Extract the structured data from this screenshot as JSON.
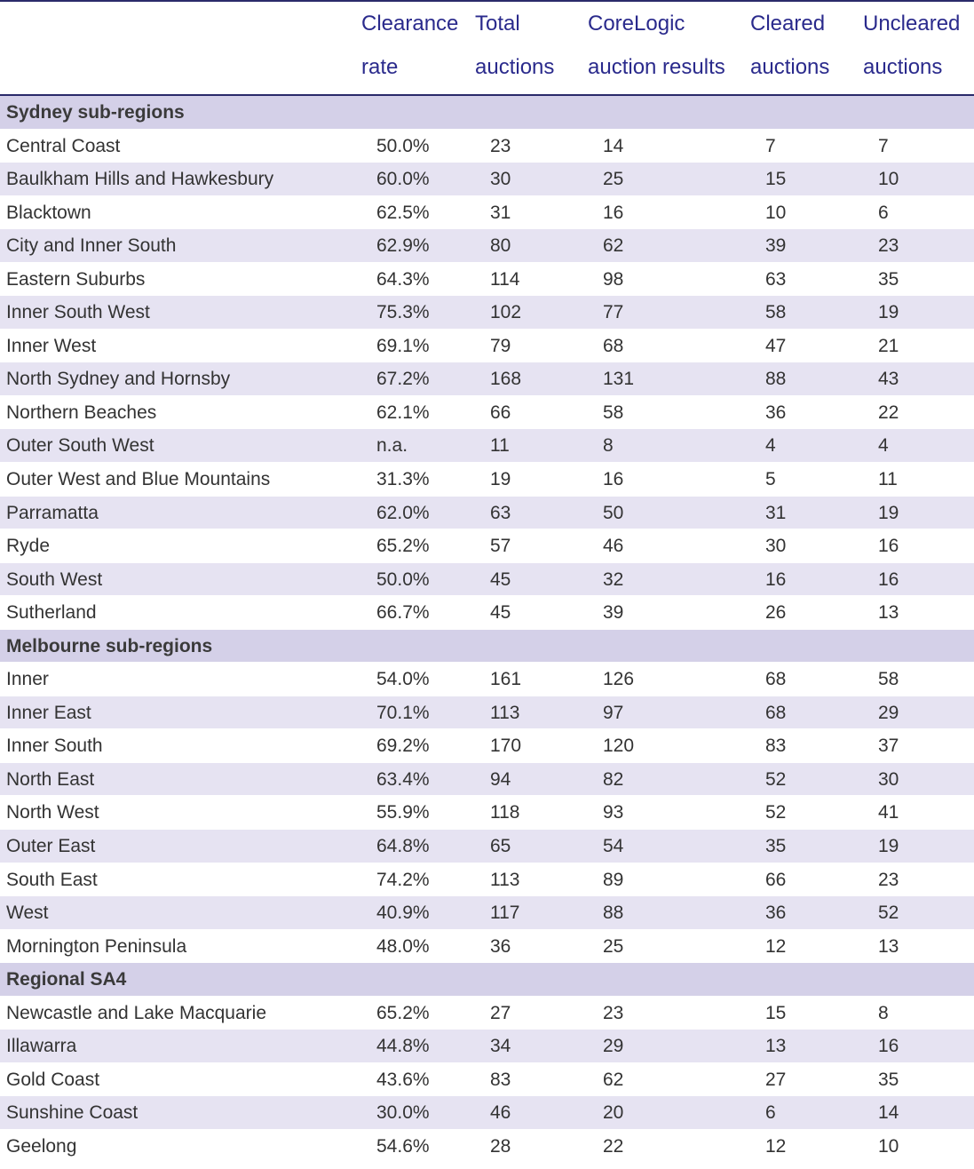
{
  "headers": [
    {
      "line1": "Clearance",
      "line2": "rate"
    },
    {
      "line1": "Total",
      "line2": "auctions"
    },
    {
      "line1": "CoreLogic",
      "line2": "auction results"
    },
    {
      "line1": "Cleared",
      "line2": "auctions"
    },
    {
      "line1": "Uncleared",
      "line2": "auctions"
    }
  ],
  "rows": [
    {
      "type": "section",
      "name": "Sydney sub-regions"
    },
    {
      "type": "data",
      "name": "Central Coast",
      "values": [
        "50.0%",
        "23",
        "14",
        "7",
        "7"
      ]
    },
    {
      "type": "data",
      "name": "Baulkham Hills and Hawkesbury",
      "values": [
        "60.0%",
        "30",
        "25",
        "15",
        "10"
      ]
    },
    {
      "type": "data",
      "name": "Blacktown",
      "values": [
        "62.5%",
        "31",
        "16",
        "10",
        "6"
      ]
    },
    {
      "type": "data",
      "name": "City and Inner South",
      "values": [
        "62.9%",
        "80",
        "62",
        "39",
        "23"
      ]
    },
    {
      "type": "data",
      "name": "Eastern Suburbs",
      "values": [
        "64.3%",
        "114",
        "98",
        "63",
        "35"
      ]
    },
    {
      "type": "data",
      "name": "Inner South West",
      "values": [
        "75.3%",
        "102",
        "77",
        "58",
        "19"
      ]
    },
    {
      "type": "data",
      "name": "Inner West",
      "values": [
        "69.1%",
        "79",
        "68",
        "47",
        "21"
      ]
    },
    {
      "type": "data",
      "name": "North Sydney and Hornsby",
      "values": [
        "67.2%",
        "168",
        "131",
        "88",
        "43"
      ]
    },
    {
      "type": "data",
      "name": "Northern Beaches",
      "values": [
        "62.1%",
        "66",
        "58",
        "36",
        "22"
      ]
    },
    {
      "type": "data",
      "name": "Outer South West",
      "values": [
        "n.a.",
        "11",
        "8",
        "4",
        "4"
      ]
    },
    {
      "type": "data",
      "name": "Outer West and Blue Mountains",
      "values": [
        "31.3%",
        "19",
        "16",
        "5",
        "11"
      ]
    },
    {
      "type": "data",
      "name": "Parramatta",
      "values": [
        "62.0%",
        "63",
        "50",
        "31",
        "19"
      ]
    },
    {
      "type": "data",
      "name": "Ryde",
      "values": [
        "65.2%",
        "57",
        "46",
        "30",
        "16"
      ]
    },
    {
      "type": "data",
      "name": "South West",
      "values": [
        "50.0%",
        "45",
        "32",
        "16",
        "16"
      ]
    },
    {
      "type": "data",
      "name": "Sutherland",
      "values": [
        "66.7%",
        "45",
        "39",
        "26",
        "13"
      ]
    },
    {
      "type": "section",
      "name": "Melbourne sub-regions"
    },
    {
      "type": "data",
      "name": "Inner",
      "values": [
        "54.0%",
        "161",
        "126",
        "68",
        "58"
      ]
    },
    {
      "type": "data",
      "name": "Inner East",
      "values": [
        "70.1%",
        "113",
        "97",
        "68",
        "29"
      ]
    },
    {
      "type": "data",
      "name": "Inner South",
      "values": [
        "69.2%",
        "170",
        "120",
        "83",
        "37"
      ]
    },
    {
      "type": "data",
      "name": "North East",
      "values": [
        "63.4%",
        "94",
        "82",
        "52",
        "30"
      ]
    },
    {
      "type": "data",
      "name": "North West",
      "values": [
        "55.9%",
        "118",
        "93",
        "52",
        "41"
      ]
    },
    {
      "type": "data",
      "name": "Outer East",
      "values": [
        "64.8%",
        "65",
        "54",
        "35",
        "19"
      ]
    },
    {
      "type": "data",
      "name": "South East",
      "values": [
        "74.2%",
        "113",
        "89",
        "66",
        "23"
      ]
    },
    {
      "type": "data",
      "name": "West",
      "values": [
        "40.9%",
        "117",
        "88",
        "36",
        "52"
      ]
    },
    {
      "type": "data",
      "name": "Mornington Peninsula",
      "values": [
        "48.0%",
        "36",
        "25",
        "12",
        "13"
      ]
    },
    {
      "type": "section",
      "name": "Regional SA4"
    },
    {
      "type": "data",
      "name": "Newcastle and Lake Macquarie",
      "values": [
        "65.2%",
        "27",
        "23",
        "15",
        "8"
      ]
    },
    {
      "type": "data",
      "name": "Illawarra",
      "values": [
        "44.8%",
        "34",
        "29",
        "13",
        "16"
      ]
    },
    {
      "type": "data",
      "name": "Gold Coast",
      "values": [
        "43.6%",
        "83",
        "62",
        "27",
        "35"
      ]
    },
    {
      "type": "data",
      "name": "Sunshine Coast",
      "values": [
        "30.0%",
        "46",
        "20",
        "6",
        "14"
      ]
    },
    {
      "type": "data",
      "name": "Geelong",
      "values": [
        "54.6%",
        "28",
        "22",
        "12",
        "10"
      ]
    }
  ]
}
